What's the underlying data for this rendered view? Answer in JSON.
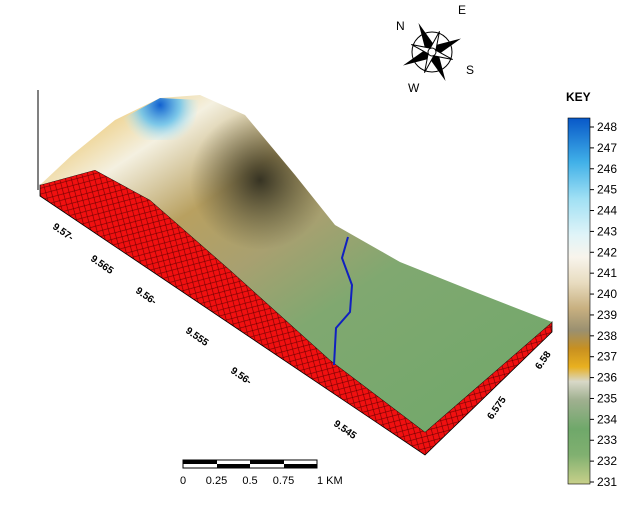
{
  "compass": {
    "north": "N",
    "east": "E",
    "south": "S",
    "west": "W"
  },
  "legend": {
    "title": "KEY",
    "ticks": [
      231,
      232,
      233,
      234,
      235,
      236,
      237,
      238,
      239,
      240,
      241,
      242,
      243,
      244,
      245,
      246,
      247,
      248
    ]
  },
  "axes": {
    "y_labels": [
      "9.57-",
      "9.565",
      "9.56-",
      "9.555",
      "9.56-",
      "9.545"
    ],
    "x_labels": [
      "6.575",
      "6.58"
    ]
  },
  "scale_bar": {
    "labels": [
      "0",
      "0.25",
      "0.5",
      "0.75",
      "1 KM"
    ]
  }
}
